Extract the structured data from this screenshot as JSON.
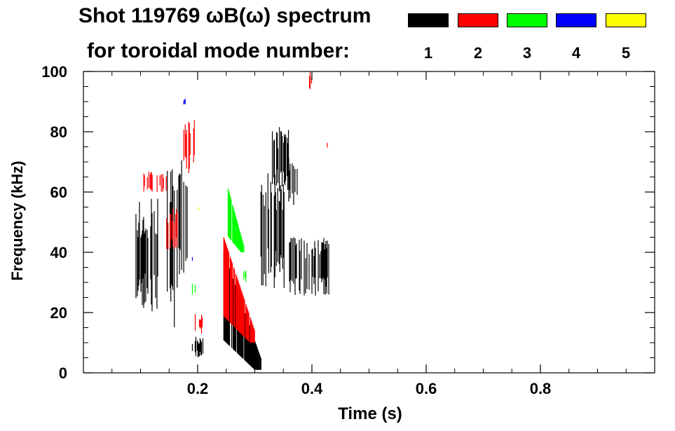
{
  "title_line1": "Shot 119769 ωB(ω) spectrum",
  "title_line2": "for toroidal mode number:",
  "legend": [
    {
      "label": "1",
      "color": "#000000"
    },
    {
      "label": "2",
      "color": "#ff0000"
    },
    {
      "label": "3",
      "color": "#00ff00"
    },
    {
      "label": "4",
      "color": "#0000ff"
    },
    {
      "label": "5",
      "color": "#ffff00"
    }
  ],
  "chart_data": {
    "type": "heatmap",
    "title": "Shot 119769 ωB(ω) spectrum for toroidal mode number: 1 2 3 4 5",
    "xlabel": "Time (s)",
    "ylabel": "Frequency (kHz)",
    "xlim": [
      0.0,
      1.0
    ],
    "ylim": [
      0,
      100
    ],
    "xticks": [
      0.2,
      0.4,
      0.6,
      0.8
    ],
    "xtick_labels": [
      "0.2",
      "0.4",
      "0.6",
      "0.8"
    ],
    "yticks": [
      0,
      20,
      40,
      60,
      80,
      100
    ],
    "ytick_labels": [
      "0",
      "20",
      "40",
      "60",
      "80",
      "100"
    ],
    "series": [
      {
        "name": "n=1",
        "color": "#000000",
        "regions": [
          {
            "t": [
              0.09,
              0.13
            ],
            "f": [
              20,
              58
            ]
          },
          {
            "t": [
              0.14,
              0.165
            ],
            "f": [
              15,
              68
            ]
          },
          {
            "t": [
              0.165,
              0.185
            ],
            "f": [
              30,
              72
            ]
          },
          {
            "t": [
              0.19,
              0.21
            ],
            "f": [
              5,
              12
            ]
          },
          {
            "t": [
              0.245,
              0.31
            ],
            "f": [
              1,
              40
            ],
            "chirp": "down"
          },
          {
            "t": [
              0.33,
              0.36
            ],
            "f": [
              60,
              82
            ]
          },
          {
            "t": [
              0.31,
              0.355
            ],
            "f": [
              28,
              67
            ]
          },
          {
            "t": [
              0.355,
              0.375
            ],
            "f": [
              55,
              73
            ]
          },
          {
            "t": [
              0.36,
              0.43
            ],
            "f": [
              25,
              45
            ]
          }
        ]
      },
      {
        "name": "n=2",
        "color": "#ff0000",
        "regions": [
          {
            "t": [
              0.105,
              0.145
            ],
            "f": [
              60,
              67
            ]
          },
          {
            "t": [
              0.175,
              0.195
            ],
            "f": [
              66,
              85
            ]
          },
          {
            "t": [
              0.145,
              0.165
            ],
            "f": [
              40,
              55
            ]
          },
          {
            "t": [
              0.195,
              0.21
            ],
            "f": [
              13,
              20
            ]
          },
          {
            "t": [
              0.245,
              0.3
            ],
            "f": [
              10,
              45
            ],
            "chirp": "down"
          },
          {
            "t": [
              0.395,
              0.4
            ],
            "f": [
              94,
              100
            ]
          },
          {
            "t": [
              0.425,
              0.43
            ],
            "f": [
              74,
              77
            ]
          }
        ]
      },
      {
        "name": "n=3",
        "color": "#00ff00",
        "regions": [
          {
            "t": [
              0.25,
              0.28
            ],
            "f": [
              40,
              63
            ],
            "chirp": "down"
          },
          {
            "t": [
              0.19,
              0.2
            ],
            "f": [
              25,
              30
            ]
          },
          {
            "t": [
              0.28,
              0.285
            ],
            "f": [
              30,
              35
            ]
          }
        ]
      },
      {
        "name": "n=4",
        "color": "#0000ff",
        "regions": [
          {
            "t": [
              0.175,
              0.18
            ],
            "f": [
              89,
              91
            ]
          },
          {
            "t": [
              0.19,
              0.192
            ],
            "f": [
              37,
              39
            ]
          }
        ]
      },
      {
        "name": "n=5",
        "color": "#ffff00",
        "regions": [
          {
            "t": [
              0.2,
              0.202
            ],
            "f": [
              54,
              55
            ]
          }
        ]
      }
    ]
  }
}
